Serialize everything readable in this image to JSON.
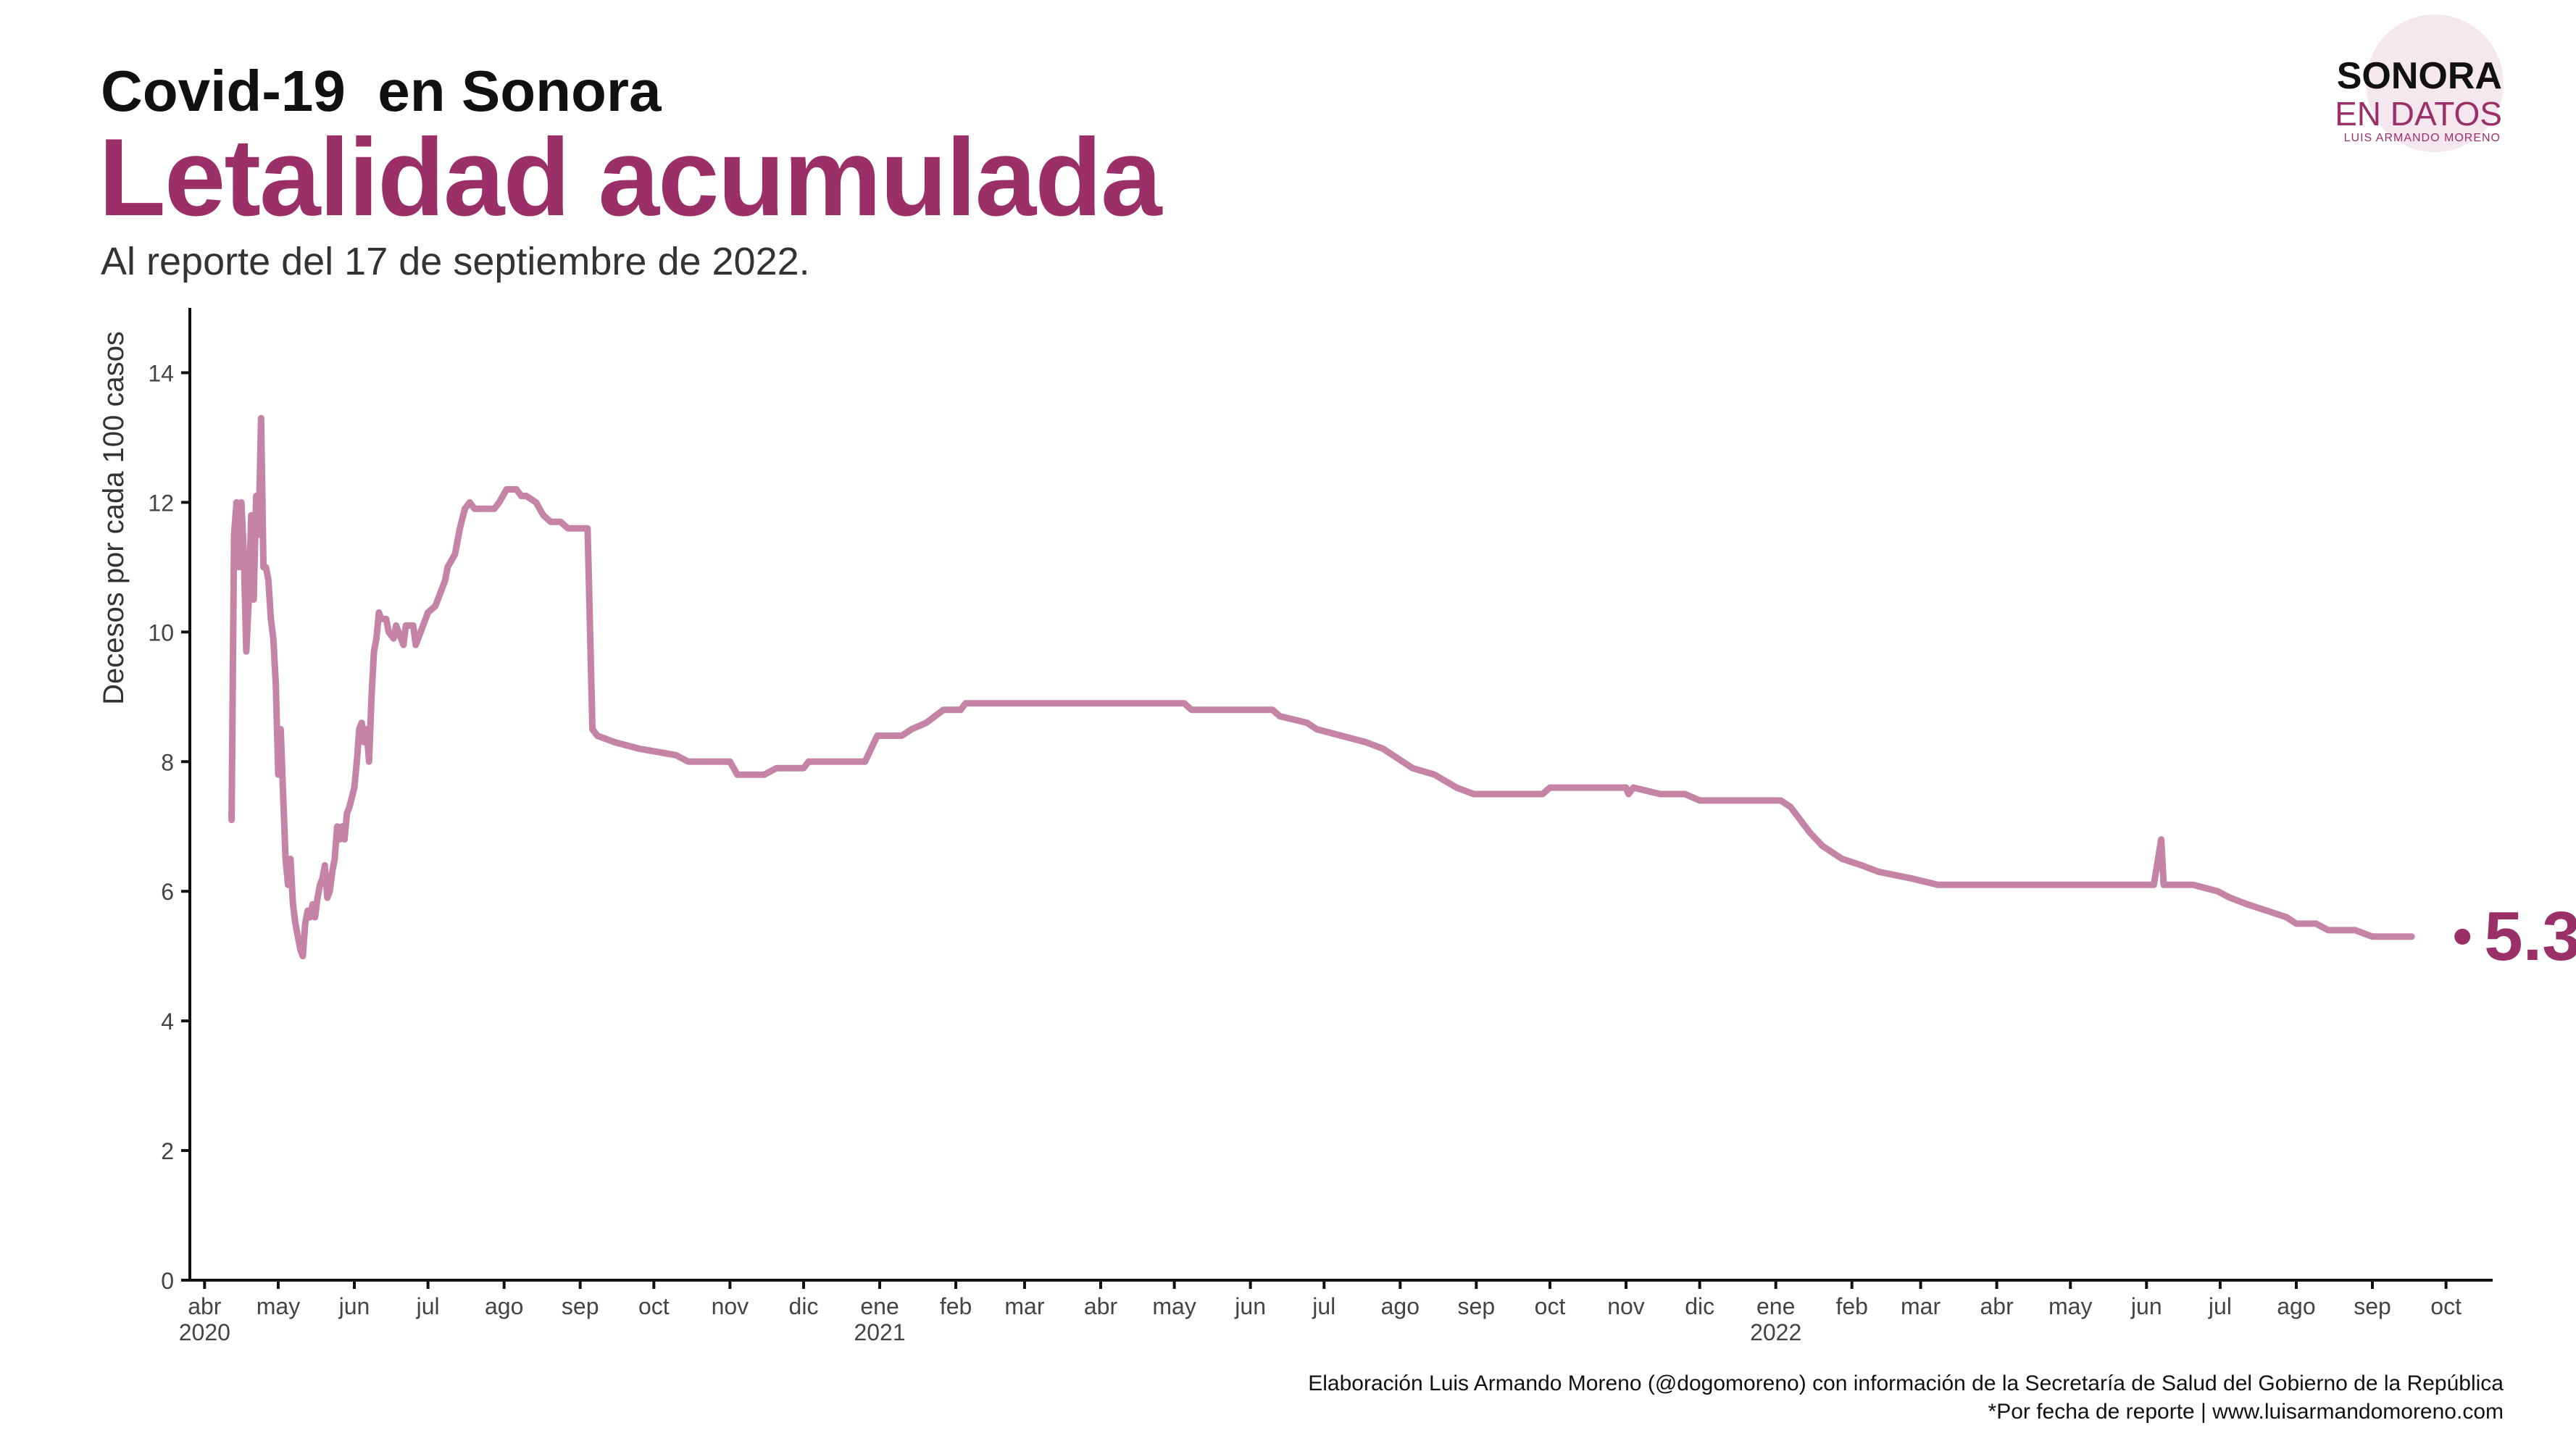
{
  "header": {
    "title_small": "Covid-19  en Sonora",
    "title_main": "Letalidad acumulada",
    "subtitle": "Al reporte del 17 de septiembre de 2022."
  },
  "logo": {
    "line1": "SONORA",
    "line2": "EN DATOS",
    "line3": "LUIS ARMANDO MORENO"
  },
  "colors": {
    "accent": "#9b3068",
    "line": "#c584a6",
    "axis": "#111111"
  },
  "footer": {
    "caption_line1": "Elaboración Luis Armando Moreno (@dogomoreno) con información de la Secretaría de Salud del Gobierno de la República",
    "caption_line2": "*Por fecha de reporte | www.luisarmandomoreno.com"
  },
  "chart_data": {
    "type": "line",
    "ylabel": "Decesos por cada 100 casos",
    "ylim": [
      0,
      15
    ],
    "yticks": [
      0,
      2,
      4,
      6,
      8,
      10,
      12,
      14
    ],
    "xlim": [
      "2020-03-26",
      "2022-10-20"
    ],
    "xticks": [
      {
        "date": "2020-04-01",
        "label": "abr",
        "year": "2020"
      },
      {
        "date": "2020-05-01",
        "label": "may"
      },
      {
        "date": "2020-06-01",
        "label": "jun"
      },
      {
        "date": "2020-07-01",
        "label": "jul"
      },
      {
        "date": "2020-08-01",
        "label": "ago"
      },
      {
        "date": "2020-09-01",
        "label": "sep"
      },
      {
        "date": "2020-10-01",
        "label": "oct"
      },
      {
        "date": "2020-11-01",
        "label": "nov"
      },
      {
        "date": "2020-12-01",
        "label": "dic"
      },
      {
        "date": "2021-01-01",
        "label": "ene",
        "year": "2021"
      },
      {
        "date": "2021-02-01",
        "label": "feb"
      },
      {
        "date": "2021-03-01",
        "label": "mar"
      },
      {
        "date": "2021-04-01",
        "label": "abr"
      },
      {
        "date": "2021-05-01",
        "label": "may"
      },
      {
        "date": "2021-06-01",
        "label": "jun"
      },
      {
        "date": "2021-07-01",
        "label": "jul"
      },
      {
        "date": "2021-08-01",
        "label": "ago"
      },
      {
        "date": "2021-09-01",
        "label": "sep"
      },
      {
        "date": "2021-10-01",
        "label": "oct"
      },
      {
        "date": "2021-11-01",
        "label": "nov"
      },
      {
        "date": "2021-12-01",
        "label": "dic"
      },
      {
        "date": "2022-01-01",
        "label": "ene",
        "year": "2022"
      },
      {
        "date": "2022-02-01",
        "label": "feb"
      },
      {
        "date": "2022-03-01",
        "label": "mar"
      },
      {
        "date": "2022-04-01",
        "label": "abr"
      },
      {
        "date": "2022-05-01",
        "label": "may"
      },
      {
        "date": "2022-06-01",
        "label": "jun"
      },
      {
        "date": "2022-07-01",
        "label": "jul"
      },
      {
        "date": "2022-08-01",
        "label": "ago"
      },
      {
        "date": "2022-09-01",
        "label": "sep"
      },
      {
        "date": "2022-10-01",
        "label": "oct"
      }
    ],
    "grid": false,
    "series": [
      {
        "values": [
          [
            "2020-04-12",
            7.1
          ],
          [
            "2020-04-13",
            11.5
          ],
          [
            "2020-04-14",
            12.0
          ],
          [
            "2020-04-15",
            11.0
          ],
          [
            "2020-04-16",
            12.0
          ],
          [
            "2020-04-17",
            11.2
          ],
          [
            "2020-04-18",
            9.7
          ],
          [
            "2020-04-19",
            10.5
          ],
          [
            "2020-04-20",
            11.8
          ],
          [
            "2020-04-21",
            10.5
          ],
          [
            "2020-04-22",
            12.1
          ],
          [
            "2020-04-23",
            11.5
          ],
          [
            "2020-04-24",
            13.3
          ],
          [
            "2020-04-25",
            11.0
          ],
          [
            "2020-04-26",
            11.0
          ],
          [
            "2020-04-27",
            10.8
          ],
          [
            "2020-04-28",
            10.2
          ],
          [
            "2020-04-29",
            9.9
          ],
          [
            "2020-04-30",
            9.2
          ],
          [
            "2020-05-01",
            7.8
          ],
          [
            "2020-05-02",
            8.5
          ],
          [
            "2020-05-03",
            7.5
          ],
          [
            "2020-05-04",
            6.5
          ],
          [
            "2020-05-05",
            6.1
          ],
          [
            "2020-05-06",
            6.5
          ],
          [
            "2020-05-07",
            5.8
          ],
          [
            "2020-05-08",
            5.5
          ],
          [
            "2020-05-09",
            5.3
          ],
          [
            "2020-05-10",
            5.1
          ],
          [
            "2020-05-11",
            5.0
          ],
          [
            "2020-05-12",
            5.5
          ],
          [
            "2020-05-13",
            5.7
          ],
          [
            "2020-05-14",
            5.6
          ],
          [
            "2020-05-15",
            5.8
          ],
          [
            "2020-05-16",
            5.6
          ],
          [
            "2020-05-17",
            5.9
          ],
          [
            "2020-05-18",
            6.1
          ],
          [
            "2020-05-19",
            6.2
          ],
          [
            "2020-05-20",
            6.4
          ],
          [
            "2020-05-21",
            5.9
          ],
          [
            "2020-05-22",
            6.0
          ],
          [
            "2020-05-23",
            6.3
          ],
          [
            "2020-05-24",
            6.5
          ],
          [
            "2020-05-25",
            7.0
          ],
          [
            "2020-05-26",
            6.8
          ],
          [
            "2020-05-27",
            7.0
          ],
          [
            "2020-05-28",
            6.8
          ],
          [
            "2020-05-29",
            7.2
          ],
          [
            "2020-05-30",
            7.3
          ],
          [
            "2020-06-01",
            7.6
          ],
          [
            "2020-06-02",
            8.0
          ],
          [
            "2020-06-03",
            8.5
          ],
          [
            "2020-06-04",
            8.6
          ],
          [
            "2020-06-05",
            8.3
          ],
          [
            "2020-06-06",
            8.5
          ],
          [
            "2020-06-07",
            8.0
          ],
          [
            "2020-06-08",
            9.0
          ],
          [
            "2020-06-09",
            9.7
          ],
          [
            "2020-06-10",
            9.9
          ],
          [
            "2020-06-11",
            10.3
          ],
          [
            "2020-06-12",
            10.2
          ],
          [
            "2020-06-14",
            10.2
          ],
          [
            "2020-06-15",
            10.0
          ],
          [
            "2020-06-17",
            9.9
          ],
          [
            "2020-06-18",
            10.1
          ],
          [
            "2020-06-20",
            9.9
          ],
          [
            "2020-06-21",
            9.8
          ],
          [
            "2020-06-22",
            10.1
          ],
          [
            "2020-06-25",
            10.1
          ],
          [
            "2020-06-26",
            9.8
          ],
          [
            "2020-06-28",
            10.0
          ],
          [
            "2020-07-01",
            10.3
          ],
          [
            "2020-07-04",
            10.4
          ],
          [
            "2020-07-06",
            10.6
          ],
          [
            "2020-07-08",
            10.8
          ],
          [
            "2020-07-09",
            11.0
          ],
          [
            "2020-07-12",
            11.2
          ],
          [
            "2020-07-14",
            11.6
          ],
          [
            "2020-07-16",
            11.9
          ],
          [
            "2020-07-18",
            12.0
          ],
          [
            "2020-07-20",
            11.9
          ],
          [
            "2020-07-28",
            11.9
          ],
          [
            "2020-07-30",
            12.0
          ],
          [
            "2020-08-02",
            12.2
          ],
          [
            "2020-08-06",
            12.2
          ],
          [
            "2020-08-08",
            12.1
          ],
          [
            "2020-08-10",
            12.1
          ],
          [
            "2020-08-14",
            12.0
          ],
          [
            "2020-08-17",
            11.8
          ],
          [
            "2020-08-20",
            11.7
          ],
          [
            "2020-08-24",
            11.7
          ],
          [
            "2020-08-27",
            11.6
          ],
          [
            "2020-09-04",
            11.6
          ],
          [
            "2020-09-06",
            8.5
          ],
          [
            "2020-09-08",
            8.4
          ],
          [
            "2020-09-15",
            8.3
          ],
          [
            "2020-09-25",
            8.2
          ],
          [
            "2020-10-10",
            8.1
          ],
          [
            "2020-10-15",
            8.0
          ],
          [
            "2020-11-01",
            8.0
          ],
          [
            "2020-11-04",
            7.8
          ],
          [
            "2020-11-15",
            7.8
          ],
          [
            "2020-11-20",
            7.9
          ],
          [
            "2020-12-01",
            7.9
          ],
          [
            "2020-12-03",
            8.0
          ],
          [
            "2020-12-26",
            8.0
          ],
          [
            "2020-12-31",
            8.4
          ],
          [
            "2021-01-10",
            8.4
          ],
          [
            "2021-01-14",
            8.5
          ],
          [
            "2021-01-20",
            8.6
          ],
          [
            "2021-01-27",
            8.8
          ],
          [
            "2021-02-03",
            8.8
          ],
          [
            "2021-02-05",
            8.9
          ],
          [
            "2021-02-28",
            8.9
          ],
          [
            "2021-05-05",
            8.9
          ],
          [
            "2021-05-08",
            8.8
          ],
          [
            "2021-06-10",
            8.8
          ],
          [
            "2021-06-13",
            8.7
          ],
          [
            "2021-06-24",
            8.6
          ],
          [
            "2021-06-28",
            8.5
          ],
          [
            "2021-07-08",
            8.4
          ],
          [
            "2021-07-18",
            8.3
          ],
          [
            "2021-07-25",
            8.2
          ],
          [
            "2021-08-02",
            8.0
          ],
          [
            "2021-08-06",
            7.9
          ],
          [
            "2021-08-15",
            7.8
          ],
          [
            "2021-08-24",
            7.6
          ],
          [
            "2021-08-31",
            7.5
          ],
          [
            "2021-09-28",
            7.5
          ],
          [
            "2021-10-01",
            7.6
          ],
          [
            "2021-11-01",
            7.6
          ],
          [
            "2021-11-02",
            7.5
          ],
          [
            "2021-11-04",
            7.6
          ],
          [
            "2021-11-15",
            7.5
          ],
          [
            "2021-11-25",
            7.5
          ],
          [
            "2021-12-01",
            7.4
          ],
          [
            "2022-01-03",
            7.4
          ],
          [
            "2022-01-07",
            7.3
          ],
          [
            "2022-01-11",
            7.1
          ],
          [
            "2022-01-15",
            6.9
          ],
          [
            "2022-01-20",
            6.7
          ],
          [
            "2022-01-28",
            6.5
          ],
          [
            "2022-02-05",
            6.4
          ],
          [
            "2022-02-12",
            6.3
          ],
          [
            "2022-02-25",
            6.2
          ],
          [
            "2022-03-08",
            6.1
          ],
          [
            "2022-06-04",
            6.1
          ],
          [
            "2022-06-07",
            6.8
          ],
          [
            "2022-06-08",
            6.1
          ],
          [
            "2022-06-20",
            6.1
          ],
          [
            "2022-06-30",
            6.0
          ],
          [
            "2022-07-05",
            5.9
          ],
          [
            "2022-07-12",
            5.8
          ],
          [
            "2022-07-20",
            5.7
          ],
          [
            "2022-07-28",
            5.6
          ],
          [
            "2022-08-01",
            5.5
          ],
          [
            "2022-08-09",
            5.5
          ],
          [
            "2022-08-14",
            5.4
          ],
          [
            "2022-08-25",
            5.4
          ],
          [
            "2022-09-01",
            5.3
          ],
          [
            "2022-09-17",
            5.3
          ]
        ]
      }
    ],
    "last_point": {
      "date": "2022-09-17",
      "value": 5.3
    },
    "annotation": "5.3"
  }
}
